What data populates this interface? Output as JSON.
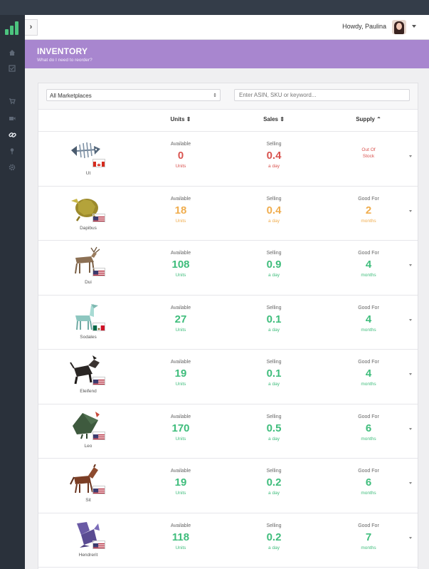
{
  "header": {
    "toggle_icon": "chevron-right-icon",
    "greeting": "Howdy, Paulina"
  },
  "sidebar": {
    "icons": [
      "home-icon",
      "check-icon",
      "cart-icon",
      "video-icon",
      "link-icon",
      "pin-icon",
      "gear-icon"
    ],
    "active": "link-icon"
  },
  "banner": {
    "title": "INVENTORY",
    "subtitle": "What do I need to reorder?"
  },
  "filters": {
    "marketplace": "All Marketplaces",
    "search_placeholder": "Enter ASIN, SKU or keyword..."
  },
  "columns": {
    "units": "Units ⇕",
    "sales": "Sales ⇕",
    "supply": "Supply ⌃"
  },
  "colors": {
    "red": "#d9534f",
    "orange": "#f0ad4e",
    "green": "#3fbd7c",
    "accent": "#a886cf"
  },
  "products": [
    {
      "name": "Ut",
      "flag": "ca",
      "image": "fish-skeleton-origami",
      "units_label": "Available",
      "units": "0",
      "units_unit": "Units",
      "sales_label": "Selling",
      "sales": "0.4",
      "sales_unit": "a day",
      "supply_label": "",
      "supply": "",
      "supply_unit": "",
      "status": "Out Of Stock",
      "color": "red"
    },
    {
      "name": "Dapibus",
      "flag": "us",
      "image": "turtle-origami",
      "units_label": "Available",
      "units": "18",
      "units_unit": "Units",
      "sales_label": "Selling",
      "sales": "0.4",
      "sales_unit": "a day",
      "supply_label": "Good For",
      "supply": "2",
      "supply_unit": "months",
      "status": "",
      "color": "orange"
    },
    {
      "name": "Dui",
      "flag": "us",
      "image": "deer-origami",
      "units_label": "Available",
      "units": "108",
      "units_unit": "Units",
      "sales_label": "Selling",
      "sales": "0.9",
      "sales_unit": "a day",
      "supply_label": "Good For",
      "supply": "4",
      "supply_unit": "months",
      "status": "",
      "color": "green"
    },
    {
      "name": "Sodales",
      "flag": "mx",
      "image": "llama-origami",
      "units_label": "Available",
      "units": "27",
      "units_unit": "Units",
      "sales_label": "Selling",
      "sales": "0.1",
      "sales_unit": "a day",
      "supply_label": "Good For",
      "supply": "4",
      "supply_unit": "months",
      "status": "",
      "color": "green"
    },
    {
      "name": "Eleifend",
      "flag": "us",
      "image": "dog-origami",
      "units_label": "Available",
      "units": "19",
      "units_unit": "Units",
      "sales_label": "Selling",
      "sales": "0.1",
      "sales_unit": "a day",
      "supply_label": "Good For",
      "supply": "4",
      "supply_unit": "months",
      "status": "",
      "color": "green"
    },
    {
      "name": "Leo",
      "flag": "us",
      "image": "bird-origami",
      "units_label": "Available",
      "units": "170",
      "units_unit": "Units",
      "sales_label": "Selling",
      "sales": "0.5",
      "sales_unit": "a day",
      "supply_label": "Good For",
      "supply": "6",
      "supply_unit": "months",
      "status": "",
      "color": "green"
    },
    {
      "name": "Sit",
      "flag": "us",
      "image": "horse-origami",
      "units_label": "Available",
      "units": "19",
      "units_unit": "Units",
      "sales_label": "Selling",
      "sales": "0.2",
      "sales_unit": "a day",
      "supply_label": "Good For",
      "supply": "6",
      "supply_unit": "months",
      "status": "",
      "color": "green"
    },
    {
      "name": "Hendrerit",
      "flag": "us",
      "image": "squirrel-origami",
      "units_label": "Available",
      "units": "118",
      "units_unit": "Units",
      "sales_label": "Selling",
      "sales": "0.2",
      "sales_unit": "a day",
      "supply_label": "Good For",
      "supply": "7",
      "supply_unit": "months",
      "status": "",
      "color": "green"
    }
  ]
}
